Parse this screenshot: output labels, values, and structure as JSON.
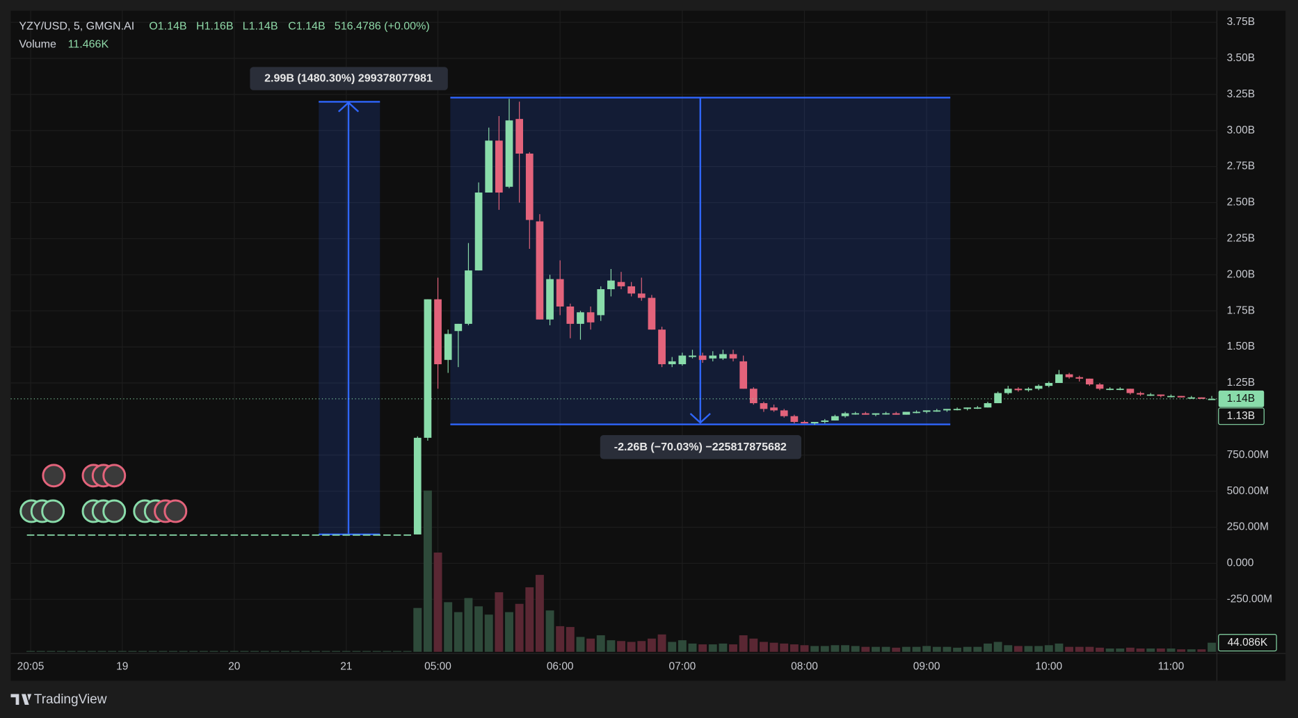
{
  "chart_data": {
    "type": "candlestick",
    "title": "YZY/USD, 5, GMGN.AI",
    "ohlc_labels": [
      "O1.14B",
      "H1.16B",
      "L1.14B",
      "C1.14B"
    ],
    "change_label": "516.4786 (+0.00%)",
    "volume_title": "Volume",
    "volume_label": "11.466K",
    "measure_labels": [
      "2.99B (1480.30%) 299378077981",
      "-2.26B (−70.03%) −225817875682"
    ],
    "last_price_label": "1.14B",
    "second_price_label": "1.13B",
    "last_volume_label": "44.086K",
    "brand": "TradingView",
    "up_color": "#89dcaa",
    "down_color": "#e3637b",
    "up_volume_color": "#2e4a3a",
    "down_volume_color": "#5a2733",
    "grid": true,
    "categories": [
      "20:05",
      null,
      null,
      null,
      null,
      null,
      null,
      null,
      null,
      "19",
      null,
      null,
      null,
      null,
      null,
      null,
      null,
      null,
      null,
      null,
      "20",
      null,
      null,
      null,
      null,
      null,
      null,
      null,
      null,
      null,
      null,
      "21",
      null,
      null,
      null,
      null,
      null,
      null,
      null,
      null,
      "05:00",
      null,
      null,
      null,
      null,
      null,
      null,
      null,
      null,
      null,
      null,
      null,
      "06:00",
      null,
      null,
      null,
      null,
      null,
      null,
      null,
      null,
      null,
      null,
      null,
      "07:00",
      null,
      null,
      null,
      null,
      null,
      null,
      null,
      null,
      null,
      null,
      null,
      "08:00",
      null,
      null,
      null,
      null,
      null,
      null,
      null,
      null,
      null,
      null,
      null,
      "09:00",
      null,
      null,
      null,
      null,
      null,
      null,
      null,
      null,
      null,
      null,
      null,
      "10:00",
      null,
      null,
      null,
      null,
      null,
      null,
      null,
      null,
      null,
      null,
      null,
      "11:00",
      null,
      null,
      null,
      null
    ],
    "open": [
      200000000.0,
      200000000.0,
      200000000.0,
      200000000.0,
      200000000.0,
      200000000.0,
      200000000.0,
      200000000.0,
      200000000.0,
      200000000.0,
      200000000.0,
      200000000.0,
      200000000.0,
      200000000.0,
      200000000.0,
      200000000.0,
      200000000.0,
      200000000.0,
      200000000.0,
      200000000.0,
      200000000.0,
      200000000.0,
      200000000.0,
      200000000.0,
      200000000.0,
      200000000.0,
      200000000.0,
      200000000.0,
      200000000.0,
      200000000.0,
      200000000.0,
      200000000.0,
      200000000.0,
      200000000.0,
      200000000.0,
      200000000.0,
      200000000.0,
      200000000.0,
      200000000.0,
      870000000.0,
      1830000000.0,
      1410000000.0,
      1610000000.0,
      1660000000.0,
      2030000000.0,
      2570000000.0,
      2930000000.0,
      2610000000.0,
      3080000000.0,
      2840000000.0,
      2370000000.0,
      1690000000.0,
      1970000000.0,
      1780000000.0,
      1660000000.0,
      1740000000.0,
      1720000000.0,
      1900000000.0,
      1950000000.0,
      1920000000.0,
      1870000000.0,
      1840000000.0,
      1620000000.0,
      1380000000.0,
      1380000000.0,
      1430000000.0,
      1440000000.0,
      1420000000.0,
      1420000000.0,
      1450000000.0,
      1400000000.0,
      1210000000.0,
      1110000000.0,
      1080000000.0,
      1060000000.0,
      1020000000.0,
      980000000.0,
      970000000.0,
      980000000.0,
      990000000.0,
      1020000000.0,
      1040000000.0,
      1040000000.0,
      1030000000.0,
      1040000000.0,
      1040000000.0,
      1030000000.0,
      1050000000.0,
      1050000000.0,
      1060000000.0,
      1060000000.0,
      1070000000.0,
      1070000000.0,
      1080000000.0,
      1080000000.0,
      1110000000.0,
      1180000000.0,
      1210000000.0,
      1200000000.0,
      1210000000.0,
      1230000000.0,
      1250000000.0,
      1310000000.0,
      1290000000.0,
      1280000000.0,
      1240000000.0,
      1210000000.0,
      1210000000.0,
      1210000000.0,
      1180000000.0,
      1170000000.0,
      1170000000.0,
      1160000000.0,
      1160000000.0,
      1150000000.0,
      1150000000.0,
      1140000000.0
    ],
    "high": [
      200000000.0,
      200000000.0,
      200000000.0,
      200000000.0,
      200000000.0,
      200000000.0,
      200000000.0,
      200000000.0,
      200000000.0,
      200000000.0,
      200000000.0,
      200000000.0,
      200000000.0,
      200000000.0,
      200000000.0,
      200000000.0,
      200000000.0,
      200000000.0,
      200000000.0,
      200000000.0,
      200000000.0,
      200000000.0,
      200000000.0,
      200000000.0,
      200000000.0,
      200000000.0,
      200000000.0,
      200000000.0,
      200000000.0,
      200000000.0,
      200000000.0,
      200000000.0,
      200000000.0,
      200000000.0,
      200000000.0,
      200000000.0,
      200000000.0,
      200000000.0,
      880000000.0,
      1830000000.0,
      1980000000.0,
      1620000000.0,
      1660000000.0,
      2220000000.0,
      2640000000.0,
      3020000000.0,
      3100000000.0,
      3220000000.0,
      3200000000.0,
      2850000000.0,
      2420000000.0,
      2000000000.0,
      2100000000.0,
      1800000000.0,
      1750000000.0,
      1780000000.0,
      1920000000.0,
      2040000000.0,
      2020000000.0,
      1950000000.0,
      1980000000.0,
      1860000000.0,
      1640000000.0,
      1430000000.0,
      1460000000.0,
      1480000000.0,
      1460000000.0,
      1470000000.0,
      1480000000.0,
      1480000000.0,
      1440000000.0,
      1220000000.0,
      1120000000.0,
      1100000000.0,
      1070000000.0,
      1030000000.0,
      990000000.0,
      980000000.0,
      1000000000.0,
      1030000000.0,
      1050000000.0,
      1050000000.0,
      1050000000.0,
      1040000000.0,
      1050000000.0,
      1050000000.0,
      1050000000.0,
      1060000000.0,
      1060000000.0,
      1070000000.0,
      1070000000.0,
      1080000000.0,
      1080000000.0,
      1090000000.0,
      1120000000.0,
      1190000000.0,
      1230000000.0,
      1220000000.0,
      1220000000.0,
      1240000000.0,
      1260000000.0,
      1340000000.0,
      1320000000.0,
      1300000000.0,
      1280000000.0,
      1250000000.0,
      1220000000.0,
      1220000000.0,
      1210000000.0,
      1190000000.0,
      1180000000.0,
      1170000000.0,
      1170000000.0,
      1160000000.0,
      1160000000.0,
      1150000000.0,
      1160000000.0
    ],
    "low": [
      200000000.0,
      200000000.0,
      200000000.0,
      200000000.0,
      200000000.0,
      200000000.0,
      200000000.0,
      200000000.0,
      200000000.0,
      200000000.0,
      200000000.0,
      200000000.0,
      200000000.0,
      200000000.0,
      200000000.0,
      200000000.0,
      200000000.0,
      200000000.0,
      200000000.0,
      200000000.0,
      200000000.0,
      200000000.0,
      200000000.0,
      200000000.0,
      200000000.0,
      200000000.0,
      200000000.0,
      200000000.0,
      200000000.0,
      200000000.0,
      200000000.0,
      200000000.0,
      200000000.0,
      200000000.0,
      200000000.0,
      200000000.0,
      200000000.0,
      200000000.0,
      200000000.0,
      850000000.0,
      1210000000.0,
      1320000000.0,
      1360000000.0,
      1650000000.0,
      2030000000.0,
      2570000000.0,
      2450000000.0,
      2600000000.0,
      2500000000.0,
      2180000000.0,
      1690000000.0,
      1650000000.0,
      1720000000.0,
      1560000000.0,
      1550000000.0,
      1620000000.0,
      1680000000.0,
      1850000000.0,
      1900000000.0,
      1850000000.0,
      1820000000.0,
      1620000000.0,
      1360000000.0,
      1360000000.0,
      1370000000.0,
      1420000000.0,
      1390000000.0,
      1400000000.0,
      1410000000.0,
      1400000000.0,
      1210000000.0,
      1100000000.0,
      1050000000.0,
      1050000000.0,
      1010000000.0,
      970000000.0,
      970000000.0,
      960000000.0,
      970000000.0,
      990000000.0,
      1010000000.0,
      1030000000.0,
      1030000000.0,
      1020000000.0,
      1030000000.0,
      1030000000.0,
      1030000000.0,
      1040000000.0,
      1040000000.0,
      1050000000.0,
      1050000000.0,
      1060000000.0,
      1060000000.0,
      1070000000.0,
      1080000000.0,
      1110000000.0,
      1170000000.0,
      1190000000.0,
      1190000000.0,
      1200000000.0,
      1220000000.0,
      1250000000.0,
      1280000000.0,
      1260000000.0,
      1230000000.0,
      1200000000.0,
      1200000000.0,
      1200000000.0,
      1170000000.0,
      1160000000.0,
      1160000000.0,
      1150000000.0,
      1150000000.0,
      1150000000.0,
      1140000000.0,
      1140000000.0,
      1140000000.0
    ],
    "close": [
      200000000.0,
      200000000.0,
      200000000.0,
      200000000.0,
      200000000.0,
      200000000.0,
      200000000.0,
      200000000.0,
      200000000.0,
      200000000.0,
      200000000.0,
      200000000.0,
      200000000.0,
      200000000.0,
      200000000.0,
      200000000.0,
      200000000.0,
      200000000.0,
      200000000.0,
      200000000.0,
      200000000.0,
      200000000.0,
      200000000.0,
      200000000.0,
      200000000.0,
      200000000.0,
      200000000.0,
      200000000.0,
      200000000.0,
      200000000.0,
      200000000.0,
      200000000.0,
      200000000.0,
      200000000.0,
      200000000.0,
      200000000.0,
      200000000.0,
      200000000.0,
      870000000.0,
      1830000000.0,
      1380000000.0,
      1590000000.0,
      1660000000.0,
      2030000000.0,
      2570000000.0,
      2930000000.0,
      2570000000.0,
      3070000000.0,
      2840000000.0,
      2380000000.0,
      1690000000.0,
      1970000000.0,
      1780000000.0,
      1660000000.0,
      1740000000.0,
      1670000000.0,
      1900000000.0,
      1960000000.0,
      1920000000.0,
      1870000000.0,
      1840000000.0,
      1620000000.0,
      1380000000.0,
      1400000000.0,
      1440000000.0,
      1440000000.0,
      1410000000.0,
      1440000000.0,
      1450000000.0,
      1420000000.0,
      1210000000.0,
      1110000000.0,
      1070000000.0,
      1060000000.0,
      1020000000.0,
      980000000.0,
      970000000.0,
      980000000.0,
      990000000.0,
      1020000000.0,
      1040000000.0,
      1040000000.0,
      1030000000.0,
      1040000000.0,
      1040000000.0,
      1030000000.0,
      1050000000.0,
      1050000000.0,
      1060000000.0,
      1060000000.0,
      1070000000.0,
      1070000000.0,
      1080000000.0,
      1080000000.0,
      1110000000.0,
      1180000000.0,
      1210000000.0,
      1200000000.0,
      1210000000.0,
      1230000000.0,
      1250000000.0,
      1310000000.0,
      1290000000.0,
      1280000000.0,
      1240000000.0,
      1210000000.0,
      1210000000.0,
      1210000000.0,
      1180000000.0,
      1170000000.0,
      1170000000.0,
      1160000000.0,
      1160000000.0,
      1150000000.0,
      1150000000.0,
      1140000000.0,
      1140000000.0
    ],
    "volume": [
      4000,
      4000,
      4000,
      4000,
      4000,
      4000,
      4000,
      4000,
      4000,
      4000,
      4000,
      4000,
      4000,
      4000,
      4000,
      4000,
      4000,
      4000,
      4000,
      4000,
      4000,
      4000,
      4000,
      4000,
      4000,
      4000,
      4000,
      4000,
      4000,
      4000,
      4000,
      4000,
      4000,
      4000,
      4000,
      4000,
      4000,
      4000,
      212000,
      780000,
      480000,
      240000,
      192000,
      260000,
      220000,
      180000,
      288000,
      192000,
      232000,
      312000,
      372000,
      200000,
      124000,
      120000,
      72000,
      64000,
      80000,
      56000,
      52000,
      48000,
      52000,
      64000,
      84000,
      48000,
      56000,
      40000,
      36000,
      36000,
      40000,
      36000,
      80000,
      64000,
      48000,
      44000,
      40000,
      36000,
      32000,
      28000,
      28000,
      32000,
      32000,
      28000,
      24000,
      24000,
      24000,
      20000,
      24000,
      24000,
      28000,
      24000,
      24000,
      20000,
      24000,
      24000,
      40000,
      48000,
      32000,
      28000,
      28000,
      28000,
      32000,
      40000,
      24000,
      24000,
      24000,
      20000,
      16000,
      16000,
      20000,
      16000,
      16000,
      16000,
      16000,
      12000,
      12000,
      12000,
      44086
    ],
    "ylim": [
      -613500000,
      3830000000
    ],
    "vlim": [
      0,
      1000000
    ],
    "yticks": [
      {
        "value": 3750000000,
        "label": "3.75B"
      },
      {
        "value": 3500000000,
        "label": "3.50B"
      },
      {
        "value": 3250000000,
        "label": "3.25B"
      },
      {
        "value": 3000000000,
        "label": "3.00B"
      },
      {
        "value": 2750000000,
        "label": "2.75B"
      },
      {
        "value": 2500000000,
        "label": "2.50B"
      },
      {
        "value": 2250000000,
        "label": "2.25B"
      },
      {
        "value": 2000000000,
        "label": "2.00B"
      },
      {
        "value": 1750000000,
        "label": "1.75B"
      },
      {
        "value": 1500000000,
        "label": "1.50B"
      },
      {
        "value": 1250000000,
        "label": "1.25B"
      },
      {
        "value": 750000000,
        "label": "750.00M"
      },
      {
        "value": 500000000,
        "label": "500.00M"
      },
      {
        "value": 250000000,
        "label": "250.00M"
      },
      {
        "value": 0,
        "label": "0.000"
      },
      {
        "value": -250000000,
        "label": "-250.00M"
      }
    ]
  }
}
